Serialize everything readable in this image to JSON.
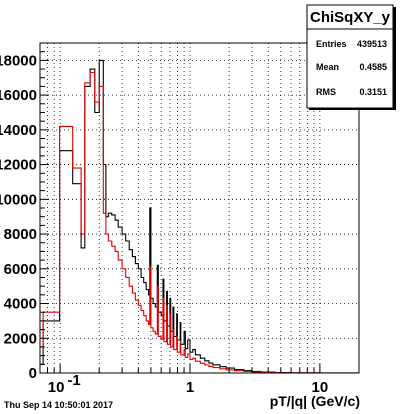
{
  "timestamp": "Thu Sep 14 10:50:01 2017",
  "stats": {
    "title": "ChiSqXY_y",
    "rows": [
      {
        "key": "Entries",
        "value": "439513"
      },
      {
        "key": "Mean",
        "value": "0.4585"
      },
      {
        "key": "RMS",
        "value": "0.3151"
      }
    ]
  },
  "chart_data": {
    "type": "histogram",
    "xlabel": "pT/|q| (GeV/c)",
    "ylabel": "",
    "x_scale": "log",
    "xlim": [
      0.07,
      20
    ],
    "ylim": [
      0,
      19000
    ],
    "grid": true,
    "x_ticks": [
      {
        "value": 0.1,
        "label": "10^-1"
      },
      {
        "value": 1,
        "label": "1"
      },
      {
        "value": 10,
        "label": "10"
      }
    ],
    "y_ticks": [
      {
        "value": 0,
        "label": "0"
      },
      {
        "value": 2000,
        "label": "2000"
      },
      {
        "value": 4000,
        "label": "4000"
      },
      {
        "value": 6000,
        "label": "6000"
      },
      {
        "value": 8000,
        "label": "8000"
      },
      {
        "value": 10000,
        "label": "10000"
      },
      {
        "value": 12000,
        "label": "12000"
      },
      {
        "value": 14000,
        "label": "14000"
      },
      {
        "value": 16000,
        "label": "16000"
      },
      {
        "value": 18000,
        "label": "18000"
      }
    ],
    "series": [
      {
        "color": "#000000",
        "points": [
          [
            0.07,
            500
          ],
          [
            0.074,
            3000
          ],
          [
            0.099,
            12800
          ],
          [
            0.125,
            10900
          ],
          [
            0.145,
            7200
          ],
          [
            0.155,
            16500
          ],
          [
            0.17,
            17500
          ],
          [
            0.185,
            15000
          ],
          [
            0.2,
            18000
          ],
          [
            0.215,
            12000
          ],
          [
            0.225,
            9000
          ],
          [
            0.235,
            9200
          ],
          [
            0.25,
            9100
          ],
          [
            0.265,
            8800
          ],
          [
            0.28,
            8400
          ],
          [
            0.3,
            8000
          ],
          [
            0.32,
            7600
          ],
          [
            0.34,
            7100
          ],
          [
            0.36,
            6700
          ],
          [
            0.38,
            6300
          ],
          [
            0.4,
            6000
          ],
          [
            0.42,
            5500
          ],
          [
            0.44,
            5200
          ],
          [
            0.46,
            4800
          ],
          [
            0.48,
            4500
          ],
          [
            0.49,
            9500
          ],
          [
            0.5,
            4300
          ],
          [
            0.52,
            4000
          ],
          [
            0.54,
            3800
          ],
          [
            0.56,
            6200
          ],
          [
            0.57,
            3500
          ],
          [
            0.6,
            3300
          ],
          [
            0.62,
            5400
          ],
          [
            0.63,
            3000
          ],
          [
            0.66,
            4700
          ],
          [
            0.67,
            2700
          ],
          [
            0.7,
            4300
          ],
          [
            0.71,
            2400
          ],
          [
            0.74,
            3800
          ],
          [
            0.75,
            2100
          ],
          [
            0.79,
            3400
          ],
          [
            0.8,
            1900
          ],
          [
            0.84,
            2900
          ],
          [
            0.85,
            1650
          ],
          [
            0.9,
            2400
          ],
          [
            0.92,
            1400
          ],
          [
            0.96,
            1900
          ],
          [
            1.0,
            1200
          ],
          [
            1.05,
            1350
          ],
          [
            1.1,
            1050
          ],
          [
            1.2,
            850
          ],
          [
            1.3,
            700
          ],
          [
            1.4,
            570
          ],
          [
            1.5,
            470
          ],
          [
            1.7,
            360
          ],
          [
            1.9,
            280
          ],
          [
            2.2,
            200
          ],
          [
            2.6,
            130
          ],
          [
            3.0,
            90
          ],
          [
            3.5,
            55
          ],
          [
            4.5,
            25
          ],
          [
            6,
            10
          ],
          [
            10,
            3
          ],
          [
            20,
            0
          ]
        ]
      },
      {
        "color": "#e00000",
        "points": [
          [
            0.07,
            1500
          ],
          [
            0.074,
            3500
          ],
          [
            0.099,
            14200
          ],
          [
            0.125,
            11800
          ],
          [
            0.145,
            8000
          ],
          [
            0.155,
            16700
          ],
          [
            0.17,
            17300
          ],
          [
            0.185,
            15600
          ],
          [
            0.2,
            16500
          ],
          [
            0.215,
            9200
          ],
          [
            0.225,
            8000
          ],
          [
            0.235,
            7600
          ],
          [
            0.25,
            7300
          ],
          [
            0.265,
            7000
          ],
          [
            0.28,
            6500
          ],
          [
            0.3,
            6000
          ],
          [
            0.32,
            5500
          ],
          [
            0.34,
            5000
          ],
          [
            0.36,
            4600
          ],
          [
            0.38,
            4200
          ],
          [
            0.4,
            3900
          ],
          [
            0.42,
            3600
          ],
          [
            0.44,
            3300
          ],
          [
            0.46,
            3000
          ],
          [
            0.48,
            2800
          ],
          [
            0.49,
            6100
          ],
          [
            0.5,
            2600
          ],
          [
            0.52,
            2400
          ],
          [
            0.54,
            2250
          ],
          [
            0.56,
            5000
          ],
          [
            0.57,
            2100
          ],
          [
            0.6,
            1950
          ],
          [
            0.62,
            4300
          ],
          [
            0.63,
            1800
          ],
          [
            0.66,
            3900
          ],
          [
            0.67,
            1650
          ],
          [
            0.7,
            3400
          ],
          [
            0.71,
            1500
          ],
          [
            0.74,
            2500
          ],
          [
            0.75,
            1350
          ],
          [
            0.79,
            2100
          ],
          [
            0.8,
            1200
          ],
          [
            0.84,
            1700
          ],
          [
            0.85,
            1050
          ],
          [
            0.9,
            1350
          ],
          [
            0.92,
            900
          ],
          [
            0.96,
            1100
          ],
          [
            1.0,
            780
          ],
          [
            1.05,
            850
          ],
          [
            1.1,
            680
          ],
          [
            1.2,
            560
          ],
          [
            1.3,
            460
          ],
          [
            1.4,
            380
          ],
          [
            1.5,
            310
          ],
          [
            1.7,
            240
          ],
          [
            1.9,
            180
          ],
          [
            2.2,
            130
          ],
          [
            2.6,
            85
          ],
          [
            3.0,
            55
          ],
          [
            3.5,
            32
          ],
          [
            4.5,
            14
          ],
          [
            6,
            5
          ],
          [
            10,
            1
          ],
          [
            20,
            0
          ]
        ]
      }
    ]
  }
}
